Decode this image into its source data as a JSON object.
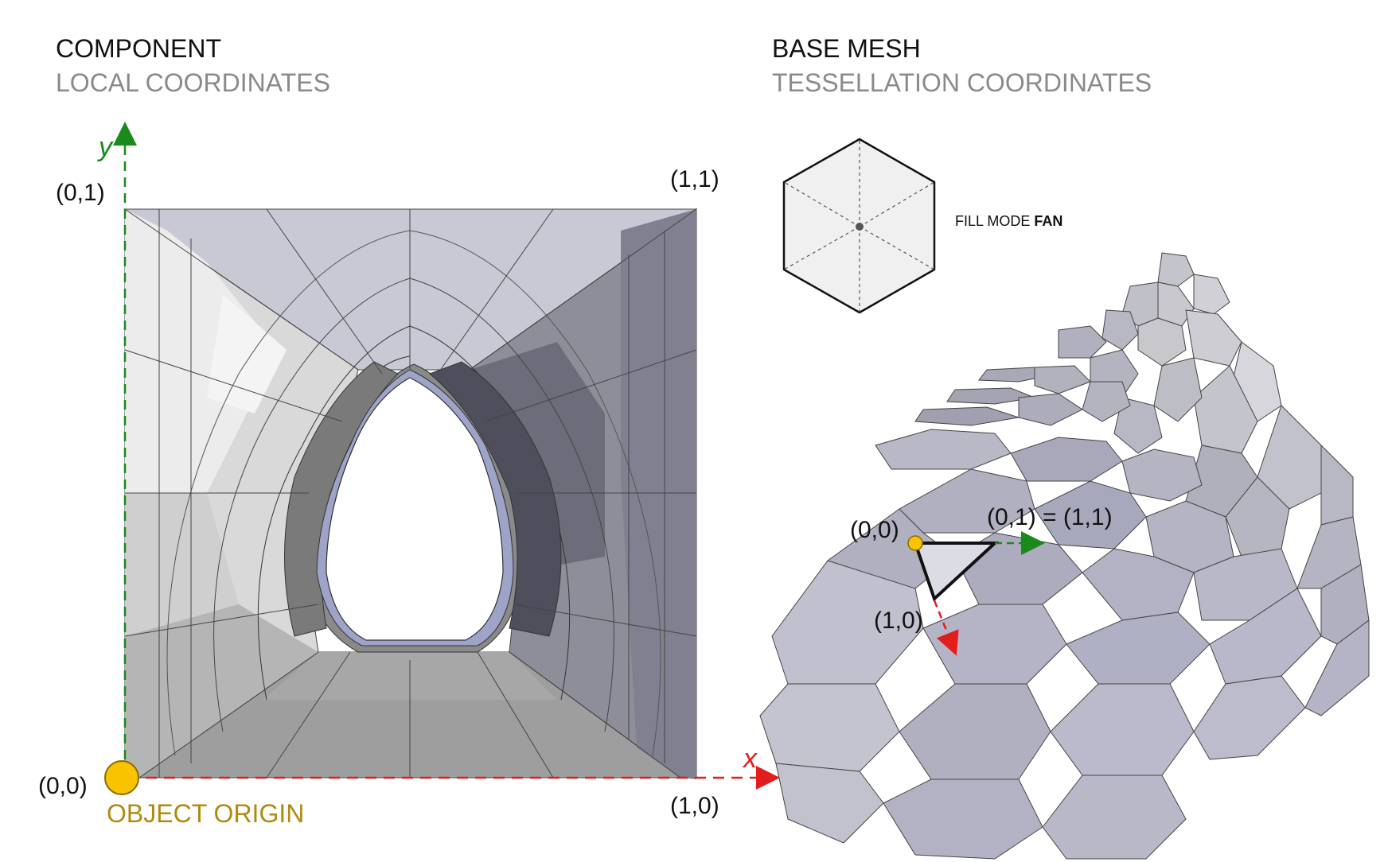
{
  "left_panel": {
    "heading": "COMPONENT",
    "subheading": "LOCAL COORDINATES",
    "axis_x_label": "x",
    "axis_y_label": "y",
    "corner_top_left": "(0,1)",
    "corner_top_right": "(1,1)",
    "corner_bottom_left": "(0,0)",
    "corner_bottom_right": "(1,0)",
    "origin_label": "OBJECT ORIGIN",
    "colors": {
      "x_axis": "#e31c1c",
      "y_axis": "#1a8a1a",
      "origin": "#f8c400",
      "origin_text": "#b08a10"
    }
  },
  "right_panel": {
    "heading": "BASE MESH",
    "subheading": "TESSELLATION COORDINATES",
    "fill_mode_prefix": "FILL MODE",
    "fill_mode_value": "FAN",
    "vertex_00": "(0,0)",
    "vertex_01_11": "(0,1) = (1,1)",
    "vertex_10": "(1,0)"
  }
}
